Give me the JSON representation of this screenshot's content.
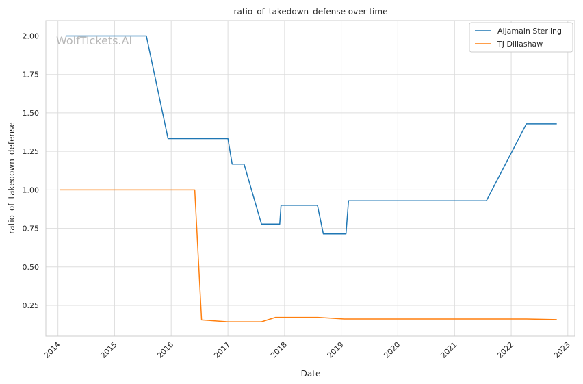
{
  "watermark": "WolfTickets.AI",
  "chart_data": {
    "type": "line",
    "title": "ratio_of_takedown_defense over time",
    "xlabel": "Date",
    "ylabel": "ratio_of_takedown_defense",
    "x_ticks": [
      "2014",
      "2015",
      "2016",
      "2017",
      "2018",
      "2019",
      "2020",
      "2021",
      "2022",
      "2023"
    ],
    "y_ticks": [
      "0.25",
      "0.50",
      "0.75",
      "1.00",
      "1.25",
      "1.50",
      "1.75",
      "2.00"
    ],
    "xlim": [
      "2013-10-15",
      "2023-02-15"
    ],
    "ylim": [
      0.05,
      2.1
    ],
    "grid": true,
    "legend_position": "top-right",
    "series": [
      {
        "name": "Aljamain Sterling",
        "color": "#1f77b4",
        "points": [
          [
            "2014-02-22",
            2.0
          ],
          [
            "2015-07-25",
            2.0
          ],
          [
            "2015-12-12",
            1.333
          ],
          [
            "2017-01-01",
            1.333
          ],
          [
            "2017-01-28",
            1.167
          ],
          [
            "2017-04-15",
            1.167
          ],
          [
            "2017-08-05",
            0.778
          ],
          [
            "2017-12-01",
            0.778
          ],
          [
            "2017-12-09",
            0.9
          ],
          [
            "2018-08-01",
            0.9
          ],
          [
            "2018-09-08",
            0.714
          ],
          [
            "2019-02-01",
            0.714
          ],
          [
            "2019-02-17",
            0.929
          ],
          [
            "2021-07-25",
            0.929
          ],
          [
            "2022-04-09",
            1.429
          ],
          [
            "2022-10-22",
            1.429
          ]
        ]
      },
      {
        "name": "TJ Dillashaw",
        "color": "#ff7f0e",
        "points": [
          [
            "2014-01-15",
            1.0
          ],
          [
            "2016-06-01",
            1.0
          ],
          [
            "2016-07-15",
            0.155
          ],
          [
            "2017-01-01",
            0.143
          ],
          [
            "2017-08-05",
            0.143
          ],
          [
            "2017-11-04",
            0.172
          ],
          [
            "2018-08-04",
            0.172
          ],
          [
            "2019-01-19",
            0.161
          ],
          [
            "2022-04-09",
            0.161
          ],
          [
            "2022-10-22",
            0.157
          ]
        ]
      }
    ]
  }
}
